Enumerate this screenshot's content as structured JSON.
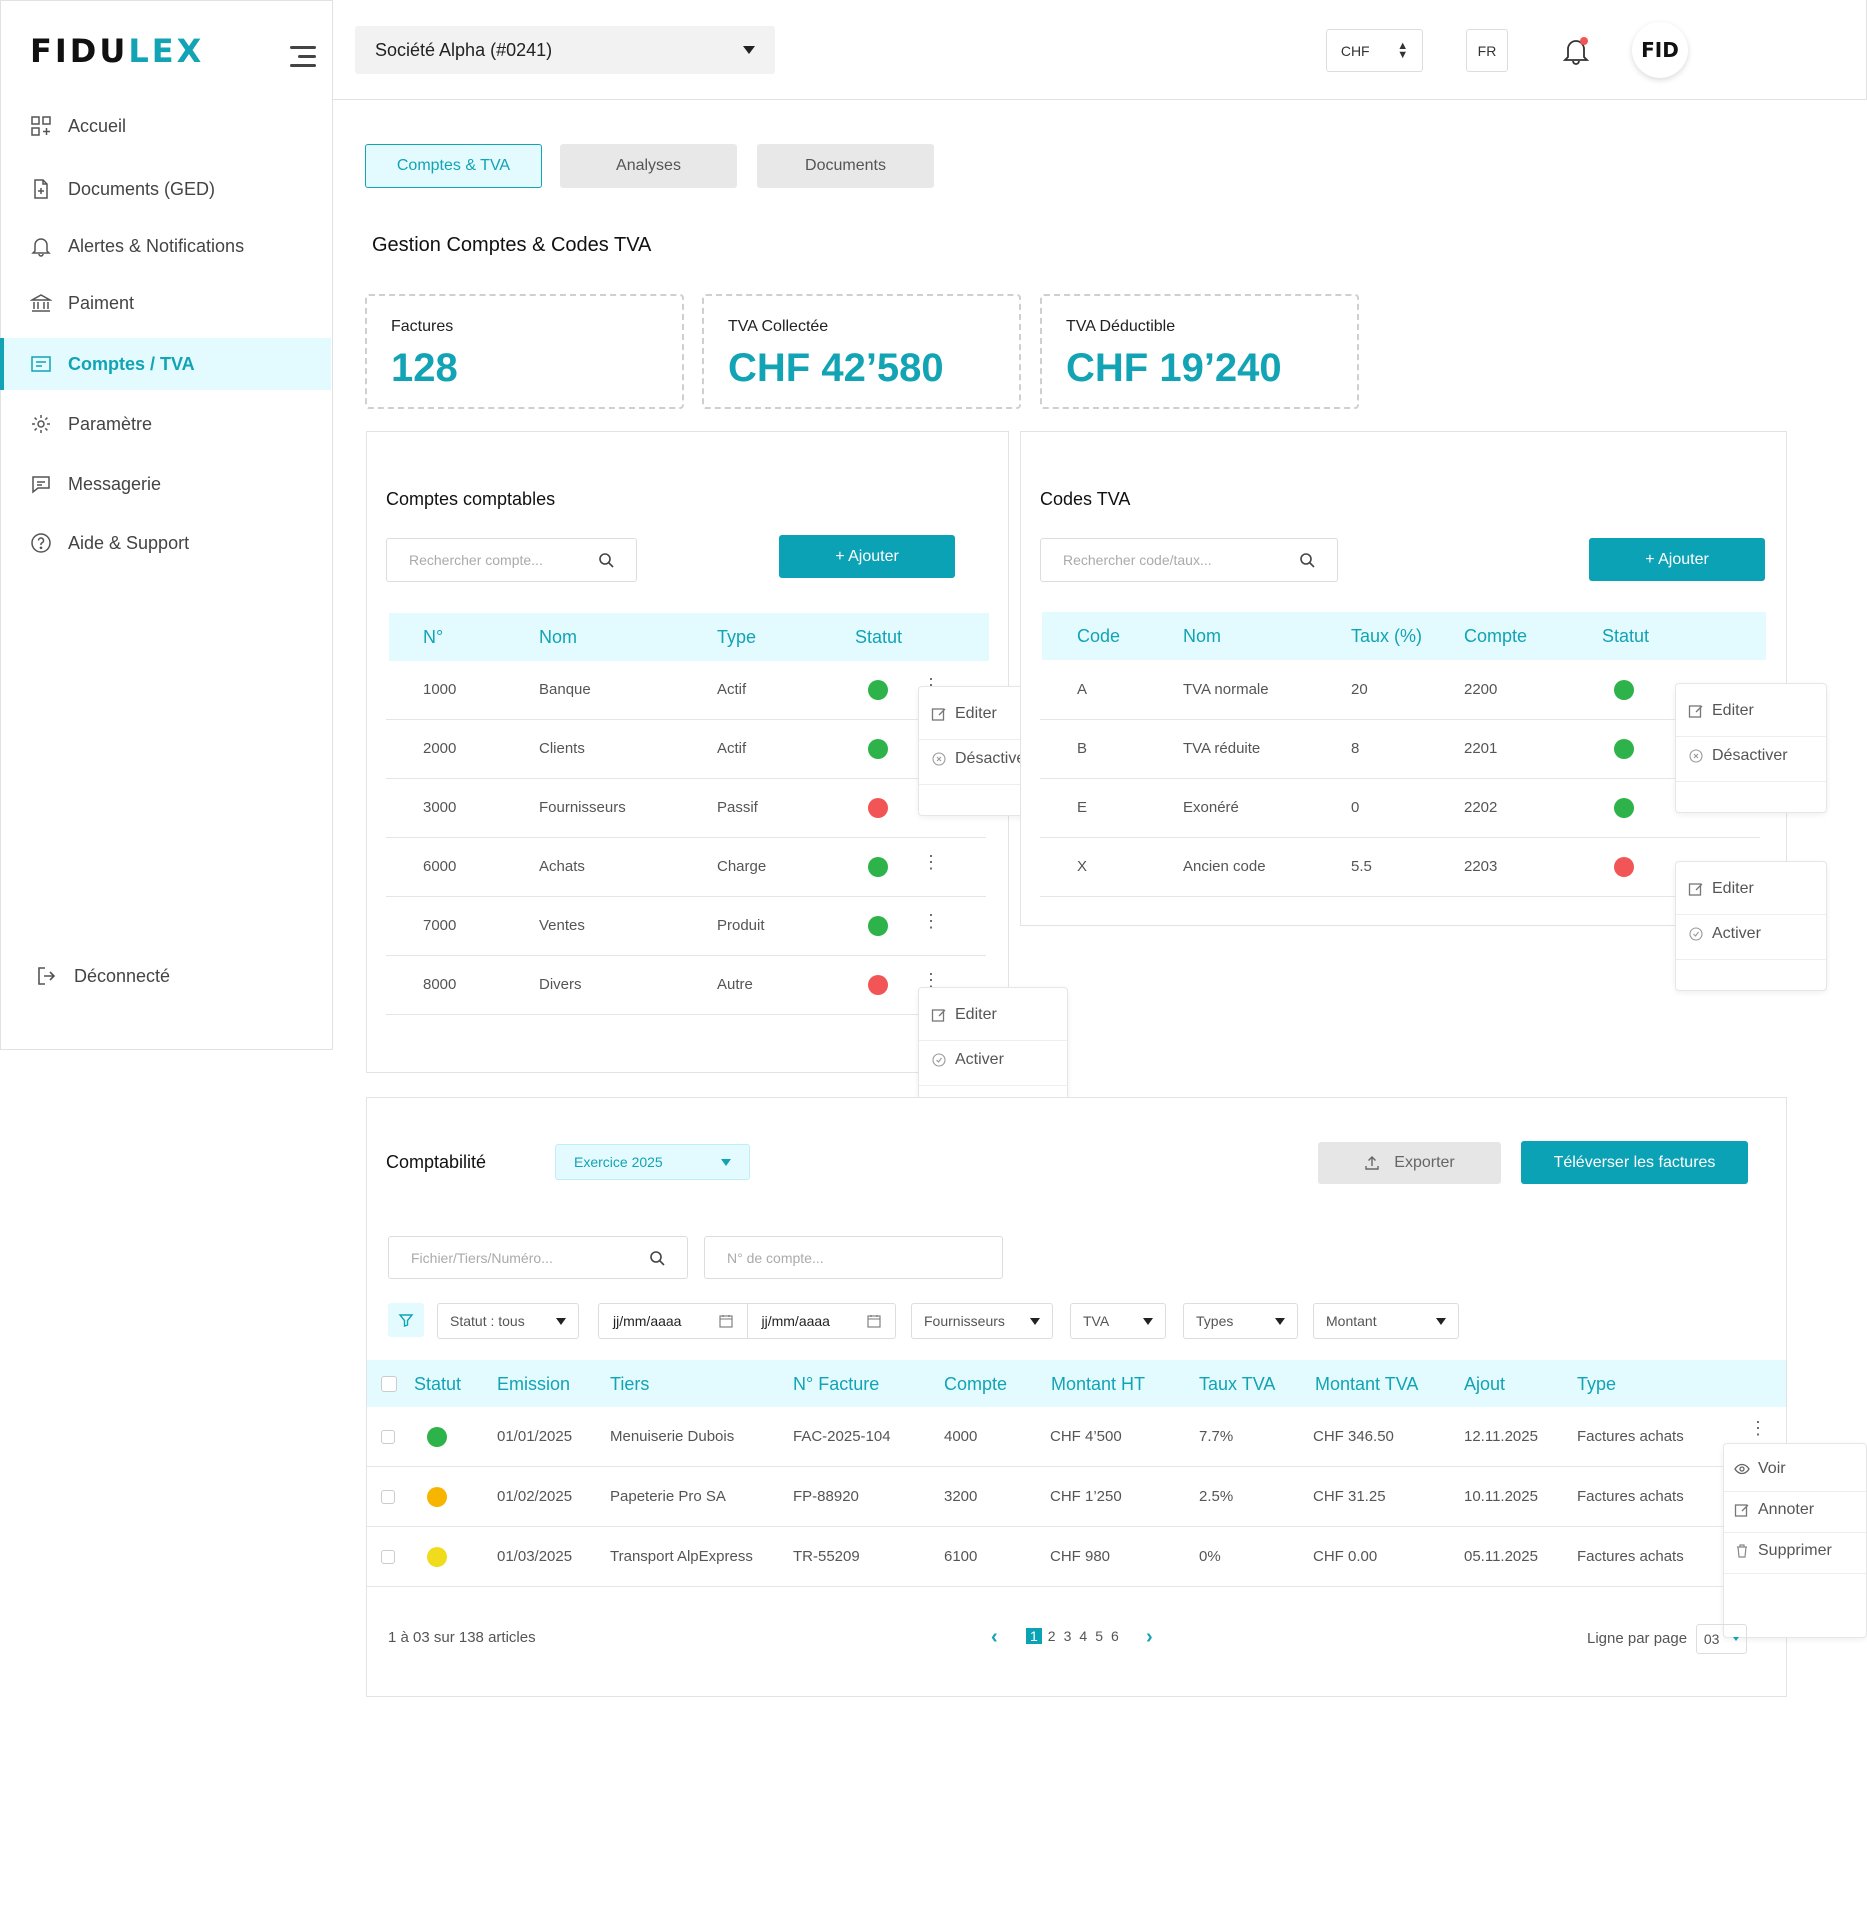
{
  "brand": {
    "logo_prefix": "FIDU",
    "logo_suffix": "LEX",
    "accent": "#12a3b4"
  },
  "sidebar": {
    "items": [
      {
        "label": "Accueil",
        "icon": "grid-icon"
      },
      {
        "label": "Documents (GED)",
        "icon": "document-add-icon"
      },
      {
        "label": "Alertes & Notifications",
        "icon": "bell-icon"
      },
      {
        "label": "Paiment",
        "icon": "bank-icon"
      },
      {
        "label": "Comptes / TVA",
        "icon": "ledger-icon"
      },
      {
        "label": "Paramètre",
        "icon": "gear-icon"
      },
      {
        "label": "Messagerie",
        "icon": "chat-icon"
      },
      {
        "label": "Aide & Support",
        "icon": "help-icon"
      }
    ],
    "logout": "Déconnecté"
  },
  "header": {
    "company": "Société Alpha (#0241)",
    "currency": "CHF",
    "language": "FR",
    "avatar": "FID"
  },
  "tabs": [
    "Comptes & TVA",
    "Analyses",
    "Documents"
  ],
  "page_title": "Gestion Comptes & Codes TVA",
  "stats": [
    {
      "label": "Factures",
      "value": "128"
    },
    {
      "label": "TVA Collectée",
      "value": "CHF 42’580"
    },
    {
      "label": "TVA Déductible",
      "value": "CHF 19’240"
    }
  ],
  "accounts": {
    "title": "Comptes comptables",
    "search_placeholder": "Rechercher compte...",
    "add_label": "+ Ajouter",
    "columns": [
      "N°",
      "Nom",
      "Type",
      "Statut"
    ],
    "rows": [
      {
        "num": "1000",
        "name": "Banque",
        "type": "Actif",
        "status": "active"
      },
      {
        "num": "2000",
        "name": "Clients",
        "type": "Actif",
        "status": "active"
      },
      {
        "num": "3000",
        "name": "Fournisseurs",
        "type": "Passif",
        "status": "inactive"
      },
      {
        "num": "6000",
        "name": "Achats",
        "type": "Charge",
        "status": "active"
      },
      {
        "num": "7000",
        "name": "Ventes",
        "type": "Produit",
        "status": "active"
      },
      {
        "num": "8000",
        "name": "Divers",
        "type": "Autre",
        "status": "inactive"
      }
    ],
    "menu_1": [
      "Editer",
      "Désactiver"
    ],
    "menu_2": [
      "Editer",
      "Activer"
    ]
  },
  "vat": {
    "title": "Codes TVA",
    "search_placeholder": "Rechercher code/taux...",
    "add_label": "+ Ajouter",
    "columns": [
      "Code",
      "Nom",
      "Taux (%)",
      "Compte",
      "Statut"
    ],
    "rows": [
      {
        "code": "A",
        "name": "TVA normale",
        "rate": "20",
        "account": "2200",
        "status": "active"
      },
      {
        "code": "B",
        "name": "TVA réduite",
        "rate": "8",
        "account": "2201",
        "status": "active"
      },
      {
        "code": "E",
        "name": "Exonéré",
        "rate": "0",
        "account": "2202",
        "status": "active"
      },
      {
        "code": "X",
        "name": "Ancien code",
        "rate": "5.5",
        "account": "2203",
        "status": "inactive"
      }
    ],
    "menu_1": [
      "Editer",
      "Désactiver"
    ],
    "menu_2": [
      "Editer",
      "Activer"
    ]
  },
  "compta": {
    "title": "Comptabilité",
    "exercise": "Exercice 2025",
    "export_label": "Exporter",
    "upload_label": "Téléverser les factures",
    "search_placeholder": "Fichier/Tiers/Numéro...",
    "account_placeholder": "N° de compte...",
    "filters": {
      "status": "Statut : tous",
      "date_from": "jj/mm/aaaa",
      "date_to": "jj/mm/aaaa",
      "supplier": "Fournisseurs",
      "vat": "TVA",
      "types": "Types",
      "amount": "Montant"
    },
    "columns": [
      "Statut",
      "Emission",
      "Tiers",
      "N° Facture",
      "Compte",
      "Montant HT",
      "Taux TVA",
      "Montant TVA",
      "Ajout",
      "Type"
    ],
    "rows": [
      {
        "status": "green",
        "emission": "01/01/2025",
        "tiers": "Menuiserie Dubois",
        "invoice": "FAC-2025-104",
        "account": "4000",
        "ht": "CHF 4’500",
        "rate": "7.7%",
        "vat": "CHF 346.50",
        "added": "12.11.2025",
        "type": "Factures achats"
      },
      {
        "status": "orange",
        "emission": "01/02/2025",
        "tiers": "Papeterie Pro SA",
        "invoice": "FP-88920",
        "account": "3200",
        "ht": "CHF 1’250",
        "rate": "2.5%",
        "vat": "CHF 31.25",
        "added": "10.11.2025",
        "type": "Factures achats"
      },
      {
        "status": "yellow",
        "emission": "01/03/2025",
        "tiers": "Transport AlpExpress",
        "invoice": "TR-55209",
        "account": "6100",
        "ht": "CHF 980",
        "rate": "0%",
        "vat": "CHF 0.00",
        "added": "05.11.2025",
        "type": "Factures achats"
      }
    ],
    "row_menu": [
      "Voir",
      "Annoter",
      "Supprimer"
    ],
    "summary": "1 à 03 sur 138 articles",
    "pages": [
      "1",
      "2",
      "3",
      "4",
      "5",
      "6"
    ],
    "per_page_label": "Ligne par page",
    "per_page": "03"
  },
  "colors": {
    "green": "#2eb24a",
    "red": "#f25555",
    "orange": "#f7b500",
    "yellow": "#f0dc1c",
    "teal": "#0aa2b4"
  }
}
